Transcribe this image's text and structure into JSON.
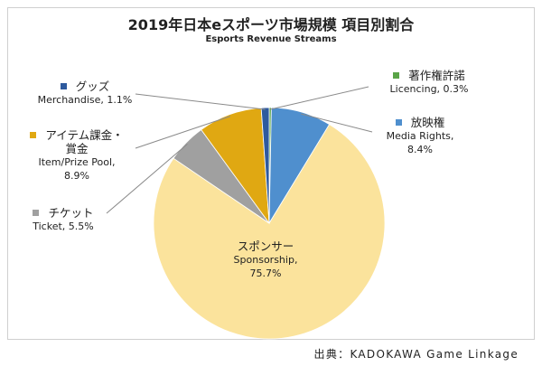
{
  "chart_data": {
    "type": "pie",
    "title": "2019年日本eスポーツ市場規模 項目別割合",
    "subtitle": "Esports Revenue Streams",
    "unit": "%",
    "slices": [
      {
        "ja": "著作権許諾",
        "en": "Licencing",
        "value": 0.3,
        "value_label": "0.3%",
        "color": "#5aa447"
      },
      {
        "ja": "放映権",
        "en": "Media Rights",
        "value": 8.4,
        "value_label": "8.4%",
        "color": "#4f8fce"
      },
      {
        "ja": "スポンサー",
        "en": "Sponsorship",
        "value": 75.7,
        "value_label": "75.7%",
        "color": "#fbe39c"
      },
      {
        "ja": "チケット",
        "en": "Ticket",
        "value": 5.5,
        "value_label": "5.5%",
        "color": "#a0a0a0"
      },
      {
        "ja": "アイテム課金・賞金",
        "en": "Item/Prize Pool",
        "value": 8.9,
        "value_label": "8.9%",
        "color": "#e0a812"
      },
      {
        "ja": "グッズ",
        "en": "Merchandise",
        "value": 1.1,
        "value_label": "1.1%",
        "color": "#2e5a9e"
      }
    ],
    "legend": "none (callout labels)",
    "source": "出典：KADOKAWA Game Linkage"
  },
  "labels": {
    "licencing": {
      "ja": "著作権許諾",
      "en": "Licencing, 0.3%"
    },
    "media": {
      "ja": "放映権",
      "en1": "Media Rights,",
      "en2": "8.4%"
    },
    "sponsor": {
      "ja": "スポンサー",
      "en1": "Sponsorship,",
      "en2": "75.7%"
    },
    "ticket": {
      "ja": "チケット",
      "en": "Ticket, 5.5%"
    },
    "item": {
      "ja1": "アイテム課金・",
      "ja2": "賞金",
      "en1": "Item/Prize Pool,",
      "en2": "8.9%"
    },
    "merch": {
      "ja": "グッズ",
      "en": "Merchandise, 1.1%"
    }
  }
}
